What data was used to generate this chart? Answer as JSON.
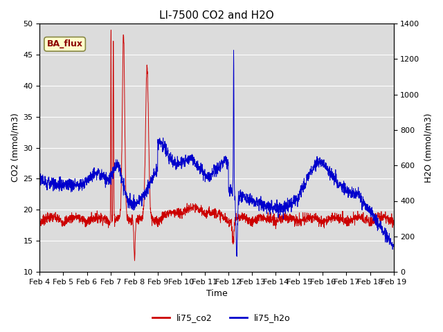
{
  "title": "LI-7500 CO2 and H2O",
  "xlabel": "Time",
  "ylabel_left": "CO2 (mmol/m3)",
  "ylabel_right": "H2O (mmol/m3)",
  "ylim_left": [
    10,
    50
  ],
  "ylim_right": [
    0,
    1400
  ],
  "yticks_left": [
    10,
    15,
    20,
    25,
    30,
    35,
    40,
    45,
    50
  ],
  "yticks_right": [
    0,
    200,
    400,
    600,
    800,
    1000,
    1200,
    1400
  ],
  "xtick_labels": [
    "Feb 4",
    "Feb 5",
    "Feb 6",
    "Feb 7",
    "Feb 8",
    "Feb 9",
    "Feb 10",
    "Feb 11",
    "Feb 12",
    "Feb 13",
    "Feb 14",
    "Feb 15",
    "Feb 16",
    "Feb 17",
    "Feb 18",
    "Feb 19"
  ],
  "legend_label1": "li75_co2",
  "legend_label2": "li75_h2o",
  "color_co2": "#cc0000",
  "color_h2o": "#0000cc",
  "annotation_text": "BA_flux",
  "annotation_color": "#8B0000",
  "annotation_bg": "#ffffcc",
  "bg_color": "#dcdcdc",
  "title_fontsize": 11,
  "label_fontsize": 9,
  "tick_fontsize": 8,
  "legend_fontsize": 9
}
